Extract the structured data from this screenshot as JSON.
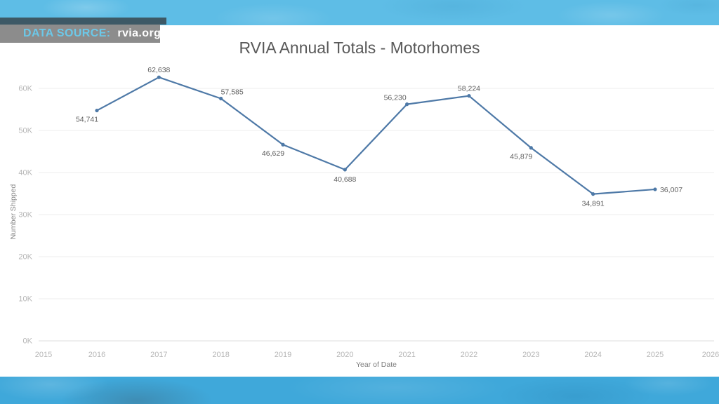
{
  "badge": {
    "label": "DATA SOURCE:",
    "value": "rvia.org",
    "bg_color": "#8c8c8c",
    "strip_color": "#3d5966",
    "accent_color": "#6cc8e8"
  },
  "border": {
    "top_color": "#5ebde6",
    "bottom_color": "#3fa8da"
  },
  "chart_data": {
    "type": "line",
    "title": "RVIA Annual Totals - Motorhomes",
    "xlabel": "Year of Date",
    "ylabel": "Number Shipped",
    "x": [
      2016,
      2017,
      2018,
      2019,
      2020,
      2021,
      2022,
      2023,
      2024,
      2025
    ],
    "values": [
      54741,
      62638,
      57585,
      46629,
      40688,
      56230,
      58224,
      45879,
      34891,
      36007
    ],
    "point_labels": [
      "54,741",
      "62,638",
      "57,585",
      "46,629",
      "40,688",
      "56,230",
      "58,224",
      "45,879",
      "34,891",
      "36,007"
    ],
    "label_positions": [
      "below-left",
      "above",
      "above-right",
      "below-left",
      "below",
      "above-left",
      "above",
      "below-left",
      "below",
      "right"
    ],
    "x_ticks": [
      "2015",
      "2016",
      "2017",
      "2018",
      "2019",
      "2020",
      "2021",
      "2022",
      "2023",
      "2024",
      "2025",
      "2026"
    ],
    "y_ticks": [
      "0K",
      "10K",
      "20K",
      "30K",
      "40K",
      "50K",
      "60K"
    ],
    "y_tick_values": [
      0,
      10000,
      20000,
      30000,
      40000,
      50000,
      60000
    ],
    "xlim": [
      2015,
      2026
    ],
    "ylim": [
      0,
      65000
    ],
    "grid": "horizontal",
    "legend": "none",
    "line_color": "#4e79a7",
    "grid_color": "#ececec",
    "baseline_color": "#dcdcdc",
    "tick_color": "#b5b5b5",
    "data_label_color": "#5f5f5f"
  }
}
